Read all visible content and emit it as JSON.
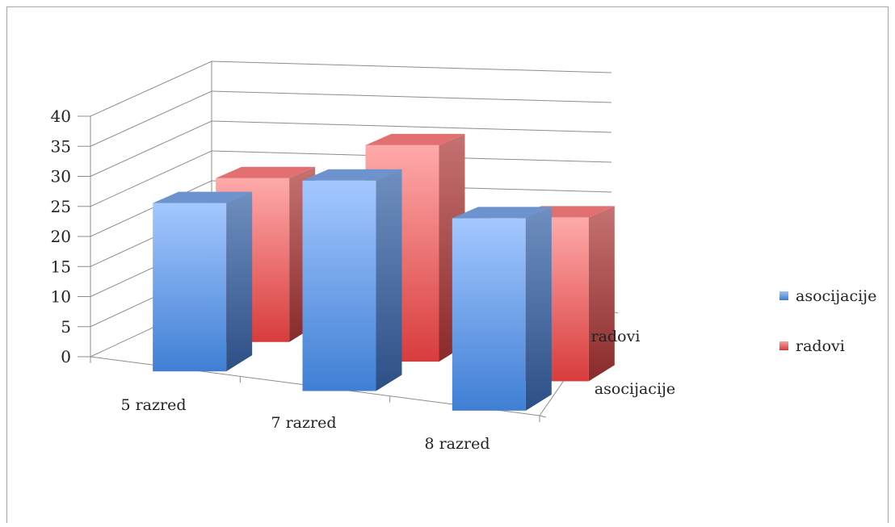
{
  "chart_data": {
    "type": "bar",
    "categories": [
      "5 razred",
      "7 razred",
      "8 razred"
    ],
    "series": [
      {
        "name": "asocijacije",
        "values": [
          28,
          35,
          32
        ]
      },
      {
        "name": "radovi",
        "values": [
          28,
          37,
          28
        ]
      }
    ],
    "depth_labels": [
      "asocijacije",
      "radovi"
    ],
    "ylim": [
      0,
      40
    ],
    "yticks": [
      "0",
      "5",
      "10",
      "15",
      "20",
      "25",
      "30",
      "35",
      "40"
    ],
    "grid": true,
    "legend_position": "right",
    "colors": {
      "asocijacije": "#4f8fd8",
      "radovi": "#e05555"
    }
  }
}
